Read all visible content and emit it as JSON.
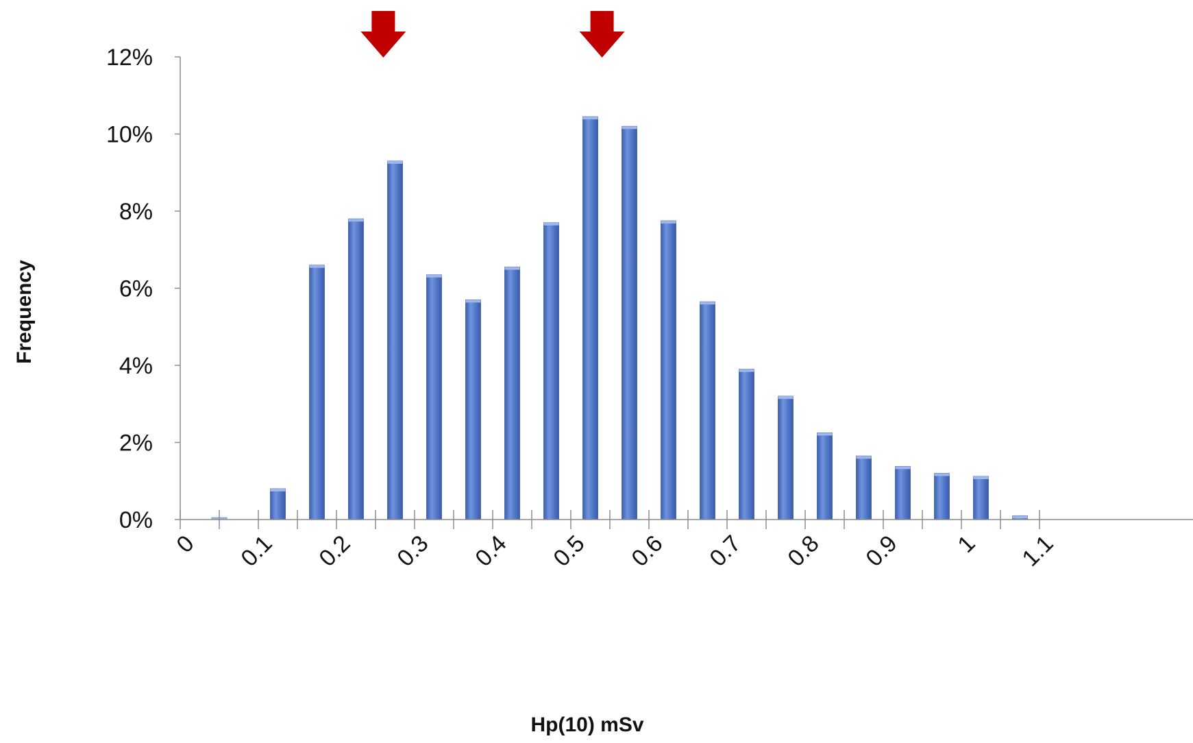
{
  "chart_data": {
    "type": "bar",
    "xlabel": "Hp(10) mSv",
    "ylabel": "Frequency",
    "x_ticks": [
      "0",
      "0.1",
      "0.2",
      "0.3",
      "0.4",
      "0.5",
      "0.6",
      "0.7",
      "0.8",
      "0.9",
      "1",
      "1.1"
    ],
    "y_ticks": [
      "0%",
      "2%",
      "4%",
      "6%",
      "8%",
      "10%",
      "12%"
    ],
    "ylim": [
      0,
      12
    ],
    "bar_color": "#4f74c6",
    "marker_color": "#c00000",
    "bars": [
      {
        "x": 0.05,
        "value": 0.05
      },
      {
        "x": 0.125,
        "value": 0.8
      },
      {
        "x": 0.175,
        "value": 6.6
      },
      {
        "x": 0.225,
        "value": 7.8
      },
      {
        "x": 0.275,
        "value": 9.3
      },
      {
        "x": 0.325,
        "value": 6.35
      },
      {
        "x": 0.375,
        "value": 5.7
      },
      {
        "x": 0.425,
        "value": 6.55
      },
      {
        "x": 0.475,
        "value": 7.7
      },
      {
        "x": 0.525,
        "value": 10.45
      },
      {
        "x": 0.575,
        "value": 10.2
      },
      {
        "x": 0.625,
        "value": 7.75
      },
      {
        "x": 0.675,
        "value": 5.65
      },
      {
        "x": 0.725,
        "value": 3.9
      },
      {
        "x": 0.775,
        "value": 3.2
      },
      {
        "x": 0.825,
        "value": 2.25
      },
      {
        "x": 0.875,
        "value": 1.65
      },
      {
        "x": 0.925,
        "value": 1.38
      },
      {
        "x": 0.975,
        "value": 1.2
      },
      {
        "x": 1.025,
        "value": 1.12
      },
      {
        "x": 1.075,
        "value": 0.1
      }
    ],
    "markers": [
      {
        "name": "arrow-marker-low",
        "x": 0.26
      },
      {
        "name": "arrow-marker-high",
        "x": 0.54
      }
    ]
  }
}
